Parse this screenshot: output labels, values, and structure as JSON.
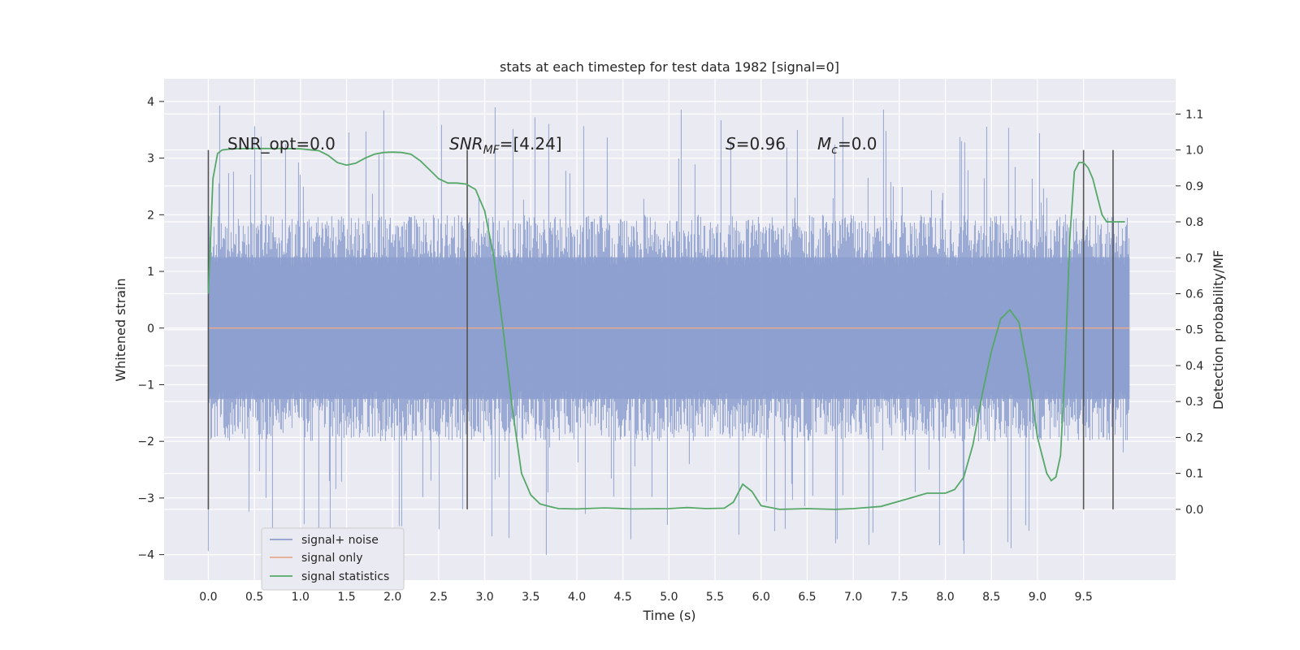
{
  "chart_data": {
    "type": "line",
    "title": "stats at each timestep for test data 1982 [signal=0]",
    "xlabel": "Time (s)",
    "ylabel": "Whitened strain",
    "y2label": "Detection probability/MF",
    "xlim": [
      -0.48,
      10.5
    ],
    "ylim": [
      -4.45,
      4.4
    ],
    "y2lim": [
      -0.197,
      1.198
    ],
    "x_ticks": [
      "0.0",
      "0.5",
      "1.0",
      "1.5",
      "2.0",
      "2.5",
      "3.0",
      "3.5",
      "4.0",
      "4.5",
      "5.0",
      "5.5",
      "6.0",
      "6.5",
      "7.0",
      "7.5",
      "8.0",
      "8.5",
      "9.0",
      "9.5"
    ],
    "y_ticks": [
      "4",
      "3",
      "2",
      "1",
      "0",
      "−1",
      "−2",
      "−3",
      "−4"
    ],
    "y2_ticks": [
      "1.1",
      "1.0",
      "0.9",
      "0.8",
      "0.7",
      "0.6",
      "0.5",
      "0.4",
      "0.3",
      "0.2",
      "0.1",
      "0.0"
    ],
    "grid": true,
    "legend_position": "lower-left",
    "annotations": {
      "snr_opt": "SNR_opt=0.0",
      "snr_mf_prefix": "SNR",
      "snr_mf_sub": "MF",
      "snr_mf_suffix": "=[4.24]",
      "s_prefix": "S",
      "s_suffix": "=0.96",
      "mc_prefix": "M",
      "mc_sub": "c",
      "mc_suffix": "=0.0"
    },
    "vertical_markers_x": [
      0.0,
      2.81,
      9.5,
      9.82
    ],
    "series": [
      {
        "name": "signal+ noise",
        "color": "#8c9fce",
        "x_range": [
          0.0,
          10.0
        ],
        "envelope": {
          "typical_max": 2.0,
          "typical_min": -2.0,
          "peak_max": 4.0,
          "peak_min": -4.05
        }
      },
      {
        "name": "signal only",
        "color": "#e8a98c",
        "x": [
          0.0,
          10.0
        ],
        "y": [
          0.0,
          0.0
        ]
      },
      {
        "name": "signal statistics",
        "color": "#55a868",
        "axis": "right",
        "x": [
          0.0,
          0.05,
          0.1,
          0.15,
          0.25,
          0.5,
          0.75,
          1.0,
          1.2,
          1.3,
          1.4,
          1.5,
          1.6,
          1.7,
          1.8,
          1.9,
          2.0,
          2.1,
          2.2,
          2.3,
          2.4,
          2.5,
          2.6,
          2.7,
          2.8,
          2.9,
          3.0,
          3.1,
          3.2,
          3.3,
          3.4,
          3.5,
          3.6,
          3.7,
          3.8,
          4.0,
          4.3,
          4.6,
          5.0,
          5.2,
          5.4,
          5.6,
          5.7,
          5.8,
          5.9,
          6.0,
          6.2,
          6.5,
          6.8,
          7.0,
          7.3,
          7.6,
          7.8,
          8.0,
          8.1,
          8.2,
          8.3,
          8.4,
          8.5,
          8.6,
          8.7,
          8.8,
          8.9,
          9.0,
          9.1,
          9.15,
          9.2,
          9.25,
          9.3,
          9.35,
          9.4,
          9.45,
          9.5,
          9.55,
          9.6,
          9.65,
          9.7,
          9.75,
          9.8,
          9.85,
          9.9,
          9.95
        ],
        "y": [
          0.6,
          0.92,
          0.99,
          1.0,
          1.003,
          1.004,
          1.004,
          1.003,
          0.998,
          0.985,
          0.965,
          0.958,
          0.963,
          0.977,
          0.988,
          0.993,
          0.994,
          0.993,
          0.988,
          0.97,
          0.945,
          0.92,
          0.908,
          0.908,
          0.905,
          0.89,
          0.83,
          0.7,
          0.5,
          0.28,
          0.1,
          0.04,
          0.015,
          0.008,
          0.002,
          0.001,
          0.004,
          0.001,
          0.002,
          0.005,
          0.002,
          0.003,
          0.02,
          0.07,
          0.05,
          0.01,
          0.0,
          0.002,
          0.0,
          0.002,
          0.008,
          0.03,
          0.045,
          0.045,
          0.055,
          0.09,
          0.18,
          0.32,
          0.44,
          0.53,
          0.555,
          0.52,
          0.38,
          0.2,
          0.1,
          0.08,
          0.09,
          0.15,
          0.4,
          0.75,
          0.94,
          0.965,
          0.965,
          0.95,
          0.92,
          0.87,
          0.82,
          0.8,
          0.8,
          0.8,
          0.8,
          0.8
        ]
      }
    ]
  }
}
